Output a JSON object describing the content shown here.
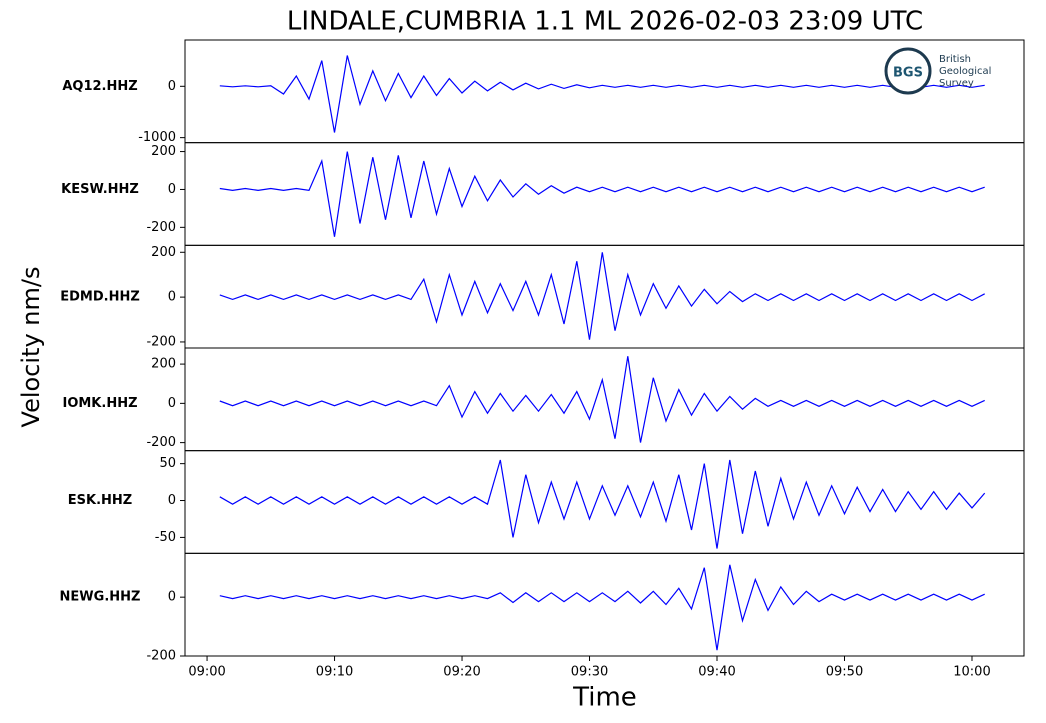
{
  "logo": {
    "abbr": "BGS",
    "lines": [
      "British",
      "Geological",
      "Survey"
    ]
  },
  "chart_data": [
    {
      "type": "line",
      "title": "LINDALE,CUMBRIA 1.1 ML   2026-02-03 23:09 UTC",
      "ylabel": "Velocity nm/s",
      "xlim": [
        -1.73,
        64.08
      ],
      "ylim": [
        -1098,
        902
      ],
      "yticks": [
        0,
        -1000
      ],
      "x": [
        1,
        2,
        3,
        4,
        5,
        6,
        7,
        8,
        9,
        10,
        11,
        12,
        13,
        14,
        15,
        16,
        17,
        18,
        19,
        20,
        21,
        22,
        23,
        24,
        25,
        26,
        27,
        28,
        29,
        30,
        31,
        32,
        33,
        34,
        35,
        36,
        37,
        38,
        39,
        40,
        41,
        42,
        43,
        44,
        45,
        46,
        47,
        48,
        49,
        50,
        51,
        52,
        53,
        54,
        55,
        56,
        57,
        58,
        59,
        60,
        61
      ],
      "series": [
        {
          "name": "AQ12.HHZ",
          "color": "#0000ff",
          "values": [
            10,
            -10,
            10,
            -10,
            10,
            -150,
            200,
            -250,
            500,
            -900,
            600,
            -350,
            300,
            -280,
            250,
            -220,
            200,
            -180,
            150,
            -130,
            100,
            -90,
            80,
            -70,
            60,
            -50,
            40,
            -40,
            30,
            -30,
            20,
            -20,
            20,
            -20,
            20,
            -20,
            20,
            -20,
            20,
            -20,
            20,
            -20,
            20,
            -20,
            20,
            -20,
            20,
            -20,
            20,
            -20,
            20,
            -20,
            20,
            -20,
            20,
            -20,
            20,
            -20,
            20,
            -20,
            20
          ]
        }
      ]
    },
    {
      "type": "line",
      "xlim": [
        -1.73,
        64.08
      ],
      "ylim": [
        -295,
        247
      ],
      "yticks": [
        200,
        0,
        -200
      ],
      "x": [
        1,
        2,
        3,
        4,
        5,
        6,
        7,
        8,
        9,
        10,
        11,
        12,
        13,
        14,
        15,
        16,
        17,
        18,
        19,
        20,
        21,
        22,
        23,
        24,
        25,
        26,
        27,
        28,
        29,
        30,
        31,
        32,
        33,
        34,
        35,
        36,
        37,
        38,
        39,
        40,
        41,
        42,
        43,
        44,
        45,
        46,
        47,
        48,
        49,
        50,
        51,
        52,
        53,
        54,
        55,
        56,
        57,
        58,
        59,
        60,
        61
      ],
      "series": [
        {
          "name": "KESW.HHZ",
          "color": "#0000ff",
          "values": [
            5,
            -5,
            5,
            -5,
            5,
            -5,
            5,
            -5,
            150,
            -250,
            200,
            -180,
            170,
            -160,
            180,
            -150,
            150,
            -130,
            110,
            -90,
            70,
            -60,
            50,
            -40,
            30,
            -25,
            20,
            -20,
            12,
            -12,
            12,
            -12,
            12,
            -12,
            12,
            -12,
            12,
            -12,
            12,
            -12,
            12,
            -12,
            12,
            -12,
            12,
            -12,
            12,
            -12,
            12,
            -12,
            12,
            -12,
            12,
            -12,
            12,
            -12,
            12,
            -12,
            12,
            -12,
            12
          ]
        }
      ]
    },
    {
      "type": "line",
      "xlim": [
        -1.73,
        64.08
      ],
      "ylim": [
        -227,
        231
      ],
      "yticks": [
        200,
        0,
        -200
      ],
      "x": [
        1,
        2,
        3,
        4,
        5,
        6,
        7,
        8,
        9,
        10,
        11,
        12,
        13,
        14,
        15,
        16,
        17,
        18,
        19,
        20,
        21,
        22,
        23,
        24,
        25,
        26,
        27,
        28,
        29,
        30,
        31,
        32,
        33,
        34,
        35,
        36,
        37,
        38,
        39,
        40,
        41,
        42,
        43,
        44,
        45,
        46,
        47,
        48,
        49,
        50,
        51,
        52,
        53,
        54,
        55,
        56,
        57,
        58,
        59,
        60,
        61
      ],
      "series": [
        {
          "name": "EDMD.HHZ",
          "color": "#0000ff",
          "values": [
            10,
            -10,
            10,
            -10,
            10,
            -10,
            10,
            -10,
            10,
            -10,
            10,
            -10,
            10,
            -10,
            10,
            -10,
            80,
            -110,
            100,
            -80,
            70,
            -70,
            60,
            -60,
            70,
            -80,
            100,
            -120,
            160,
            -190,
            200,
            -150,
            100,
            -80,
            60,
            -50,
            50,
            -40,
            35,
            -30,
            25,
            -20,
            15,
            -15,
            15,
            -15,
            15,
            -15,
            15,
            -15,
            15,
            -15,
            15,
            -15,
            15,
            -15,
            15,
            -15,
            15,
            -15,
            15
          ]
        }
      ]
    },
    {
      "type": "line",
      "xlim": [
        -1.73,
        64.08
      ],
      "ylim": [
        -241,
        282
      ],
      "yticks": [
        200,
        0,
        -200
      ],
      "x": [
        1,
        2,
        3,
        4,
        5,
        6,
        7,
        8,
        9,
        10,
        11,
        12,
        13,
        14,
        15,
        16,
        17,
        18,
        19,
        20,
        21,
        22,
        23,
        24,
        25,
        26,
        27,
        28,
        29,
        30,
        31,
        32,
        33,
        34,
        35,
        36,
        37,
        38,
        39,
        40,
        41,
        42,
        43,
        44,
        45,
        46,
        47,
        48,
        49,
        50,
        51,
        52,
        53,
        54,
        55,
        56,
        57,
        58,
        59,
        60,
        61
      ],
      "series": [
        {
          "name": "IOMK.HHZ",
          "color": "#0000ff",
          "values": [
            12,
            -12,
            12,
            -12,
            12,
            -12,
            12,
            -12,
            12,
            -12,
            12,
            -12,
            12,
            -12,
            12,
            -12,
            12,
            -12,
            90,
            -70,
            60,
            -50,
            50,
            -40,
            40,
            -40,
            45,
            -50,
            60,
            -80,
            120,
            -180,
            240,
            -200,
            130,
            -90,
            70,
            -60,
            50,
            -40,
            35,
            -30,
            25,
            -15,
            15,
            -15,
            15,
            -15,
            15,
            -15,
            15,
            -15,
            15,
            -15,
            15,
            -15,
            15,
            -15,
            15,
            -15,
            15
          ]
        }
      ]
    },
    {
      "type": "line",
      "xlim": [
        -1.73,
        64.08
      ],
      "ylim": [
        -71.6,
        67.6
      ],
      "yticks": [
        50,
        0,
        -50
      ],
      "x": [
        1,
        2,
        3,
        4,
        5,
        6,
        7,
        8,
        9,
        10,
        11,
        12,
        13,
        14,
        15,
        16,
        17,
        18,
        19,
        20,
        21,
        22,
        23,
        24,
        25,
        26,
        27,
        28,
        29,
        30,
        31,
        32,
        33,
        34,
        35,
        36,
        37,
        38,
        39,
        40,
        41,
        42,
        43,
        44,
        45,
        46,
        47,
        48,
        49,
        50,
        51,
        52,
        53,
        54,
        55,
        56,
        57,
        58,
        59,
        60,
        61
      ],
      "series": [
        {
          "name": "ESK.HHZ",
          "color": "#0000ff",
          "values": [
            5,
            -5,
            5,
            -5,
            5,
            -5,
            5,
            -5,
            5,
            -5,
            5,
            -5,
            5,
            -5,
            5,
            -5,
            5,
            -5,
            5,
            -5,
            5,
            -5,
            55,
            -50,
            35,
            -30,
            25,
            -25,
            25,
            -25,
            20,
            -20,
            20,
            -22,
            25,
            -28,
            35,
            -40,
            50,
            -65,
            55,
            -45,
            40,
            -35,
            30,
            -25,
            25,
            -20,
            20,
            -18,
            18,
            -15,
            15,
            -15,
            12,
            -12,
            12,
            -12,
            10,
            -10,
            10
          ]
        }
      ]
    },
    {
      "type": "line",
      "xlabel": "Time",
      "xlim": [
        -1.73,
        64.08
      ],
      "ylim": [
        -200,
        149
      ],
      "yticks": [
        0,
        -200
      ],
      "xticks": [
        {
          "value": 0,
          "label": "09:00"
        },
        {
          "value": 10,
          "label": "09:10"
        },
        {
          "value": 20,
          "label": "09:20"
        },
        {
          "value": 30,
          "label": "09:30"
        },
        {
          "value": 40,
          "label": "09:40"
        },
        {
          "value": 50,
          "label": "09:50"
        },
        {
          "value": 60,
          "label": "10:00"
        }
      ],
      "x": [
        1,
        2,
        3,
        4,
        5,
        6,
        7,
        8,
        9,
        10,
        11,
        12,
        13,
        14,
        15,
        16,
        17,
        18,
        19,
        20,
        21,
        22,
        23,
        24,
        25,
        26,
        27,
        28,
        29,
        30,
        31,
        32,
        33,
        34,
        35,
        36,
        37,
        38,
        39,
        40,
        41,
        42,
        43,
        44,
        45,
        46,
        47,
        48,
        49,
        50,
        51,
        52,
        53,
        54,
        55,
        56,
        57,
        58,
        59,
        60,
        61
      ],
      "series": [
        {
          "name": "NEWG.HHZ",
          "color": "#0000ff",
          "values": [
            5,
            -5,
            5,
            -5,
            5,
            -5,
            5,
            -5,
            5,
            -5,
            5,
            -5,
            5,
            -5,
            5,
            -5,
            5,
            -5,
            5,
            -5,
            5,
            -5,
            15,
            -18,
            15,
            -15,
            15,
            -15,
            15,
            -15,
            15,
            -15,
            20,
            -20,
            20,
            -25,
            30,
            -40,
            100,
            -180,
            110,
            -80,
            60,
            -45,
            35,
            -25,
            20,
            -15,
            10,
            -10,
            10,
            -10,
            10,
            -10,
            10,
            -10,
            10,
            -10,
            10,
            -10,
            10
          ]
        }
      ]
    }
  ]
}
